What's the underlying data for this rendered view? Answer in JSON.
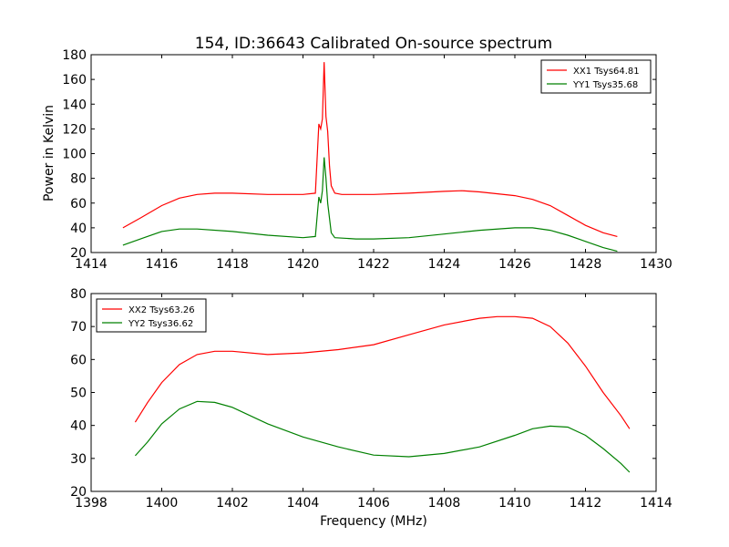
{
  "figure": {
    "title": "154, ID:36643 Calibrated On-source spectrum",
    "ylabel": "Power in Kelvin",
    "xlabel": "Frequency (MHz)"
  },
  "chart_data": [
    {
      "type": "line",
      "xlim": [
        1414,
        1430
      ],
      "ylim": [
        20,
        180
      ],
      "xticks": [
        1414,
        1416,
        1418,
        1420,
        1422,
        1424,
        1426,
        1428,
        1430
      ],
      "yticks": [
        20,
        40,
        60,
        80,
        100,
        120,
        140,
        160,
        180
      ],
      "legend": "top-right",
      "grid": false,
      "series": [
        {
          "name": "XX1 Tsys64.81",
          "color": "#ff0000",
          "x": [
            1414.9,
            1415.4,
            1416.0,
            1416.5,
            1417.0,
            1417.5,
            1418.0,
            1419.0,
            1420.0,
            1420.35,
            1420.45,
            1420.5,
            1420.55,
            1420.6,
            1420.65,
            1420.7,
            1420.75,
            1420.8,
            1420.9,
            1421.1,
            1422.0,
            1423.0,
            1424.0,
            1424.5,
            1425.0,
            1426.0,
            1426.5,
            1427.0,
            1427.5,
            1428.0,
            1428.5,
            1428.9
          ],
          "y": [
            40,
            48,
            58,
            64,
            67,
            68,
            68,
            67,
            67,
            68,
            124,
            120,
            128,
            174,
            130,
            118,
            90,
            74,
            68,
            67,
            67,
            68,
            69.5,
            70,
            69,
            66,
            63,
            58,
            50,
            42,
            36,
            33
          ]
        },
        {
          "name": "YY1 Tsys35.68",
          "color": "#008000",
          "x": [
            1414.9,
            1415.5,
            1416.0,
            1416.5,
            1417.0,
            1418.0,
            1419.0,
            1420.0,
            1420.35,
            1420.45,
            1420.5,
            1420.55,
            1420.6,
            1420.65,
            1420.7,
            1420.8,
            1420.9,
            1421.5,
            1422.0,
            1423.0,
            1424.0,
            1425.0,
            1426.0,
            1426.5,
            1427.0,
            1427.5,
            1428.0,
            1428.5,
            1428.9
          ],
          "y": [
            26,
            32,
            37,
            39,
            39,
            37,
            34,
            32,
            33,
            65,
            60,
            70,
            97,
            80,
            60,
            36,
            32,
            31,
            31,
            32,
            35,
            38,
            40,
            40,
            38,
            34,
            29,
            24,
            21
          ]
        }
      ]
    },
    {
      "type": "line",
      "xlim": [
        1398,
        1414
      ],
      "ylim": [
        20,
        80
      ],
      "xticks": [
        1398,
        1400,
        1402,
        1404,
        1406,
        1408,
        1410,
        1412,
        1414
      ],
      "yticks": [
        20,
        30,
        40,
        50,
        60,
        70,
        80
      ],
      "legend": "top-left",
      "grid": false,
      "series": [
        {
          "name": "XX2 Tsys63.26",
          "color": "#ff0000",
          "x": [
            1399.25,
            1399.6,
            1400.0,
            1400.5,
            1401.0,
            1401.5,
            1402.0,
            1403.0,
            1404.0,
            1405.0,
            1406.0,
            1407.0,
            1408.0,
            1409.0,
            1409.5,
            1410.0,
            1410.5,
            1411.0,
            1411.5,
            1412.0,
            1412.5,
            1413.0,
            1413.25
          ],
          "y": [
            41,
            47,
            53,
            58.5,
            61.5,
            62.5,
            62.5,
            61.5,
            62,
            63,
            64.5,
            67.5,
            70.5,
            72.5,
            73,
            73,
            72.5,
            70,
            65,
            58,
            50,
            43,
            39
          ]
        },
        {
          "name": "YY2 Tsys36.62",
          "color": "#008000",
          "x": [
            1399.25,
            1399.6,
            1400.0,
            1400.5,
            1401.0,
            1401.5,
            1402.0,
            1403.0,
            1404.0,
            1405.0,
            1406.0,
            1407.0,
            1408.0,
            1409.0,
            1410.0,
            1410.5,
            1411.0,
            1411.5,
            1412.0,
            1412.5,
            1413.0,
            1413.25
          ],
          "y": [
            30.8,
            35,
            40.5,
            45,
            47.3,
            47,
            45.5,
            40.5,
            36.5,
            33.5,
            31,
            30.5,
            31.5,
            33.5,
            37,
            39,
            39.8,
            39.5,
            37,
            33,
            28.5,
            25.8
          ]
        }
      ]
    }
  ]
}
